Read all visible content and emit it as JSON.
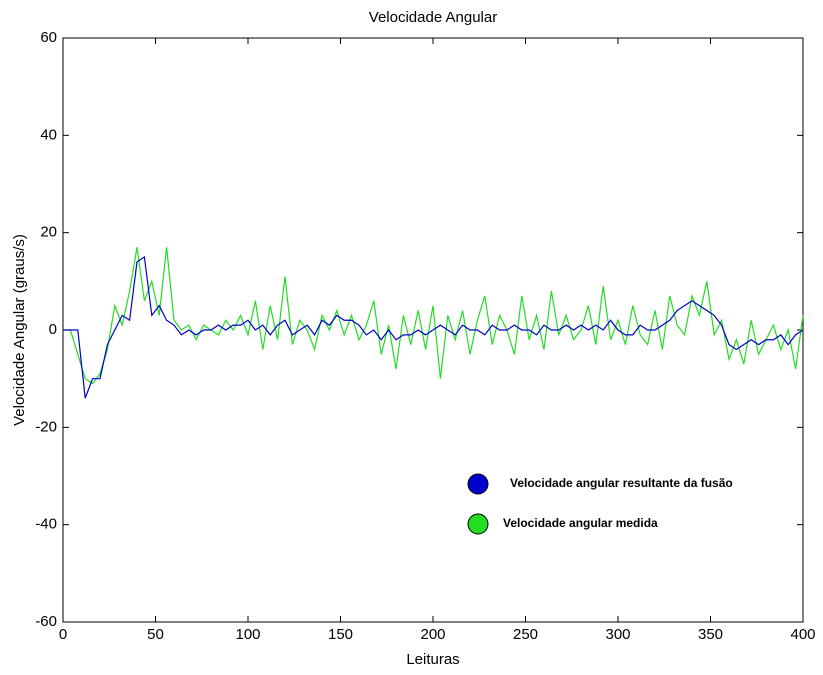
{
  "chart_data": {
    "type": "line",
    "title": "Velocidade Angular",
    "x_label": "Leituras",
    "y_label": "Velocidade Angular (graus/s)",
    "x": [
      0,
      4,
      8,
      12,
      16,
      20,
      24,
      28,
      32,
      36,
      40,
      44,
      48,
      52,
      56,
      60,
      64,
      68,
      72,
      76,
      80,
      84,
      88,
      92,
      96,
      100,
      104,
      108,
      112,
      116,
      120,
      124,
      128,
      132,
      136,
      140,
      144,
      148,
      152,
      156,
      160,
      164,
      168,
      172,
      176,
      180,
      184,
      188,
      192,
      196,
      200,
      204,
      208,
      212,
      216,
      220,
      224,
      228,
      232,
      236,
      240,
      244,
      248,
      252,
      256,
      260,
      264,
      268,
      272,
      276,
      280,
      284,
      288,
      292,
      296,
      300,
      304,
      308,
      312,
      316,
      320,
      324,
      328,
      332,
      336,
      340,
      344,
      348,
      352,
      356,
      360,
      364,
      368,
      372,
      376,
      380,
      384,
      388,
      392,
      396,
      400
    ],
    "series": [
      {
        "name": "Velocidade angular resultante da fusão",
        "color": "#0000cc",
        "values": [
          0,
          0,
          0,
          -14,
          -10,
          -10,
          -3,
          0,
          3,
          2,
          14,
          15,
          3,
          5,
          2,
          1,
          -1,
          0,
          -1,
          0,
          0,
          1,
          0,
          1,
          1,
          2,
          0,
          1,
          -1,
          1,
          2,
          -1,
          0,
          1,
          -1,
          2,
          1,
          3,
          2,
          2,
          1,
          -1,
          0,
          -2,
          0,
          -2,
          -1,
          -1,
          0,
          -1,
          0,
          1,
          0,
          -1,
          1,
          0,
          0,
          -1,
          1,
          0,
          0,
          1,
          0,
          0,
          -1,
          1,
          0,
          0,
          1,
          0,
          1,
          0,
          1,
          0,
          2,
          0,
          -1,
          -1,
          1,
          0,
          0,
          1,
          2,
          4,
          5,
          6,
          5,
          4,
          3,
          1,
          -3,
          -4,
          -3,
          -2,
          -3,
          -2,
          -2,
          -1,
          -3,
          -1,
          0
        ]
      },
      {
        "name": "Velocidade angular medida",
        "color": "#22dd22",
        "values": [
          0,
          0,
          -5,
          -10,
          -11,
          -9,
          -4,
          5,
          1,
          8,
          17,
          6,
          10,
          3,
          17,
          2,
          0,
          1,
          -2,
          1,
          0,
          -1,
          2,
          0,
          3,
          -1,
          6,
          -4,
          5,
          -2,
          11,
          -3,
          2,
          0,
          -4,
          3,
          0,
          4,
          -1,
          3,
          -2,
          1,
          6,
          -5,
          1,
          -8,
          3,
          -3,
          4,
          -4,
          5,
          -10,
          3,
          -2,
          4,
          -5,
          2,
          7,
          -3,
          3,
          0,
          -5,
          7,
          -2,
          3,
          -4,
          8,
          -1,
          3,
          -2,
          0,
          5,
          -3,
          9,
          -2,
          2,
          -3,
          5,
          -1,
          -3,
          4,
          -4,
          7,
          1,
          -1,
          7,
          3,
          10,
          -1,
          2,
          -6,
          -2,
          -7,
          2,
          -5,
          -2,
          1,
          -4,
          0,
          -8,
          3
        ]
      }
    ],
    "xlim": [
      0,
      400
    ],
    "ylim": [
      -60,
      60
    ],
    "xticks": [
      0,
      50,
      100,
      150,
      200,
      250,
      300,
      350,
      400
    ],
    "yticks": [
      -60,
      -40,
      -20,
      0,
      20,
      40,
      60
    ],
    "grid": false
  }
}
